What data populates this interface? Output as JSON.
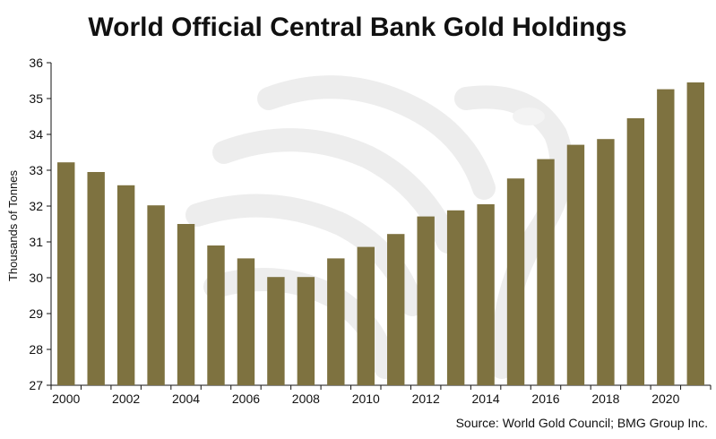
{
  "chart_data": {
    "type": "bar",
    "title": "World Official Central Bank Gold Holdings",
    "ylabel": "Thousands of Tonnes",
    "xlabel": "",
    "source": "Source: World Gold Council; BMG Group Inc.",
    "ylim": [
      27,
      36
    ],
    "yticks": [
      27,
      28,
      29,
      30,
      31,
      32,
      33,
      34,
      35,
      36
    ],
    "xtick_labels": [
      "2000",
      "2002",
      "2004",
      "2006",
      "2008",
      "2010",
      "2012",
      "2014",
      "2016",
      "2018",
      "2020"
    ],
    "categories": [
      "2000",
      "2001",
      "2002",
      "2003",
      "2004",
      "2005",
      "2006",
      "2007",
      "2008",
      "2009",
      "2010",
      "2011",
      "2012",
      "2013",
      "2014",
      "2015",
      "2016",
      "2017",
      "2018",
      "2019",
      "2020",
      "2021"
    ],
    "values": [
      33.22,
      32.95,
      32.58,
      32.02,
      31.5,
      30.9,
      30.54,
      30.02,
      30.02,
      30.54,
      30.86,
      31.22,
      31.71,
      31.88,
      32.05,
      32.77,
      33.31,
      33.71,
      33.87,
      34.45,
      35.26,
      35.45
    ],
    "bar_color": "#7e7240",
    "grid": false,
    "legend": "none"
  }
}
